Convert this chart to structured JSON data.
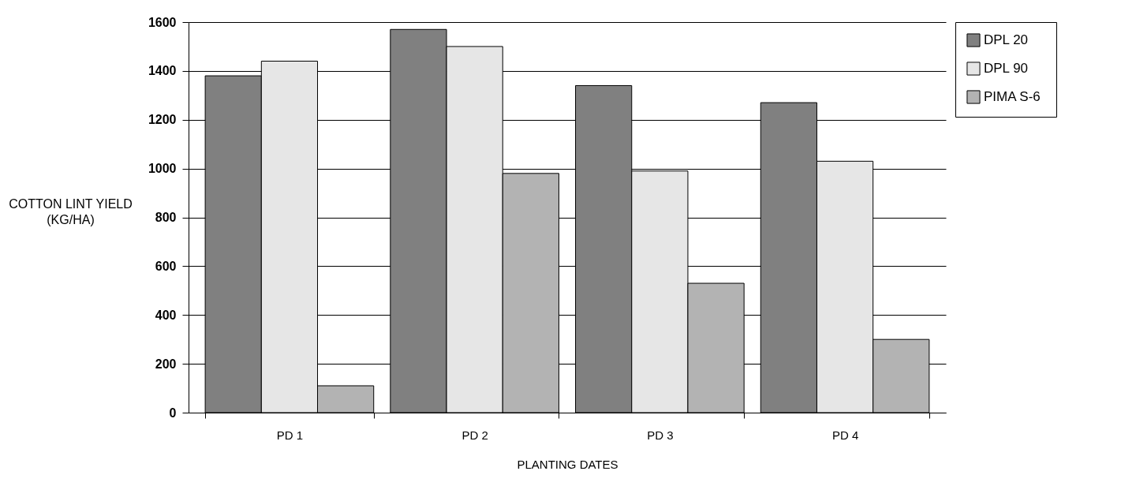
{
  "chart_data": {
    "type": "bar",
    "xlabel": "PLANTING DATES",
    "ylabel": "COTTON LINT YIELD\n(KG/HA)",
    "categories": [
      "PD 1",
      "PD 2",
      "PD 3",
      "PD 4"
    ],
    "series": [
      {
        "name": "DPL 20",
        "color": "#808080",
        "values": [
          1380,
          1570,
          1340,
          1270
        ]
      },
      {
        "name": "DPL 90",
        "color": "#e6e6e6",
        "values": [
          1440,
          1500,
          990,
          1030
        ]
      },
      {
        "name": "PIMA  S-6",
        "color": "#b3b3b3",
        "values": [
          110,
          980,
          530,
          300
        ]
      }
    ],
    "ylim": [
      0,
      1600
    ],
    "yticks": [
      0,
      200,
      400,
      600,
      800,
      1000,
      1200,
      1400,
      1600
    ],
    "grid": "y",
    "legend": "right"
  }
}
